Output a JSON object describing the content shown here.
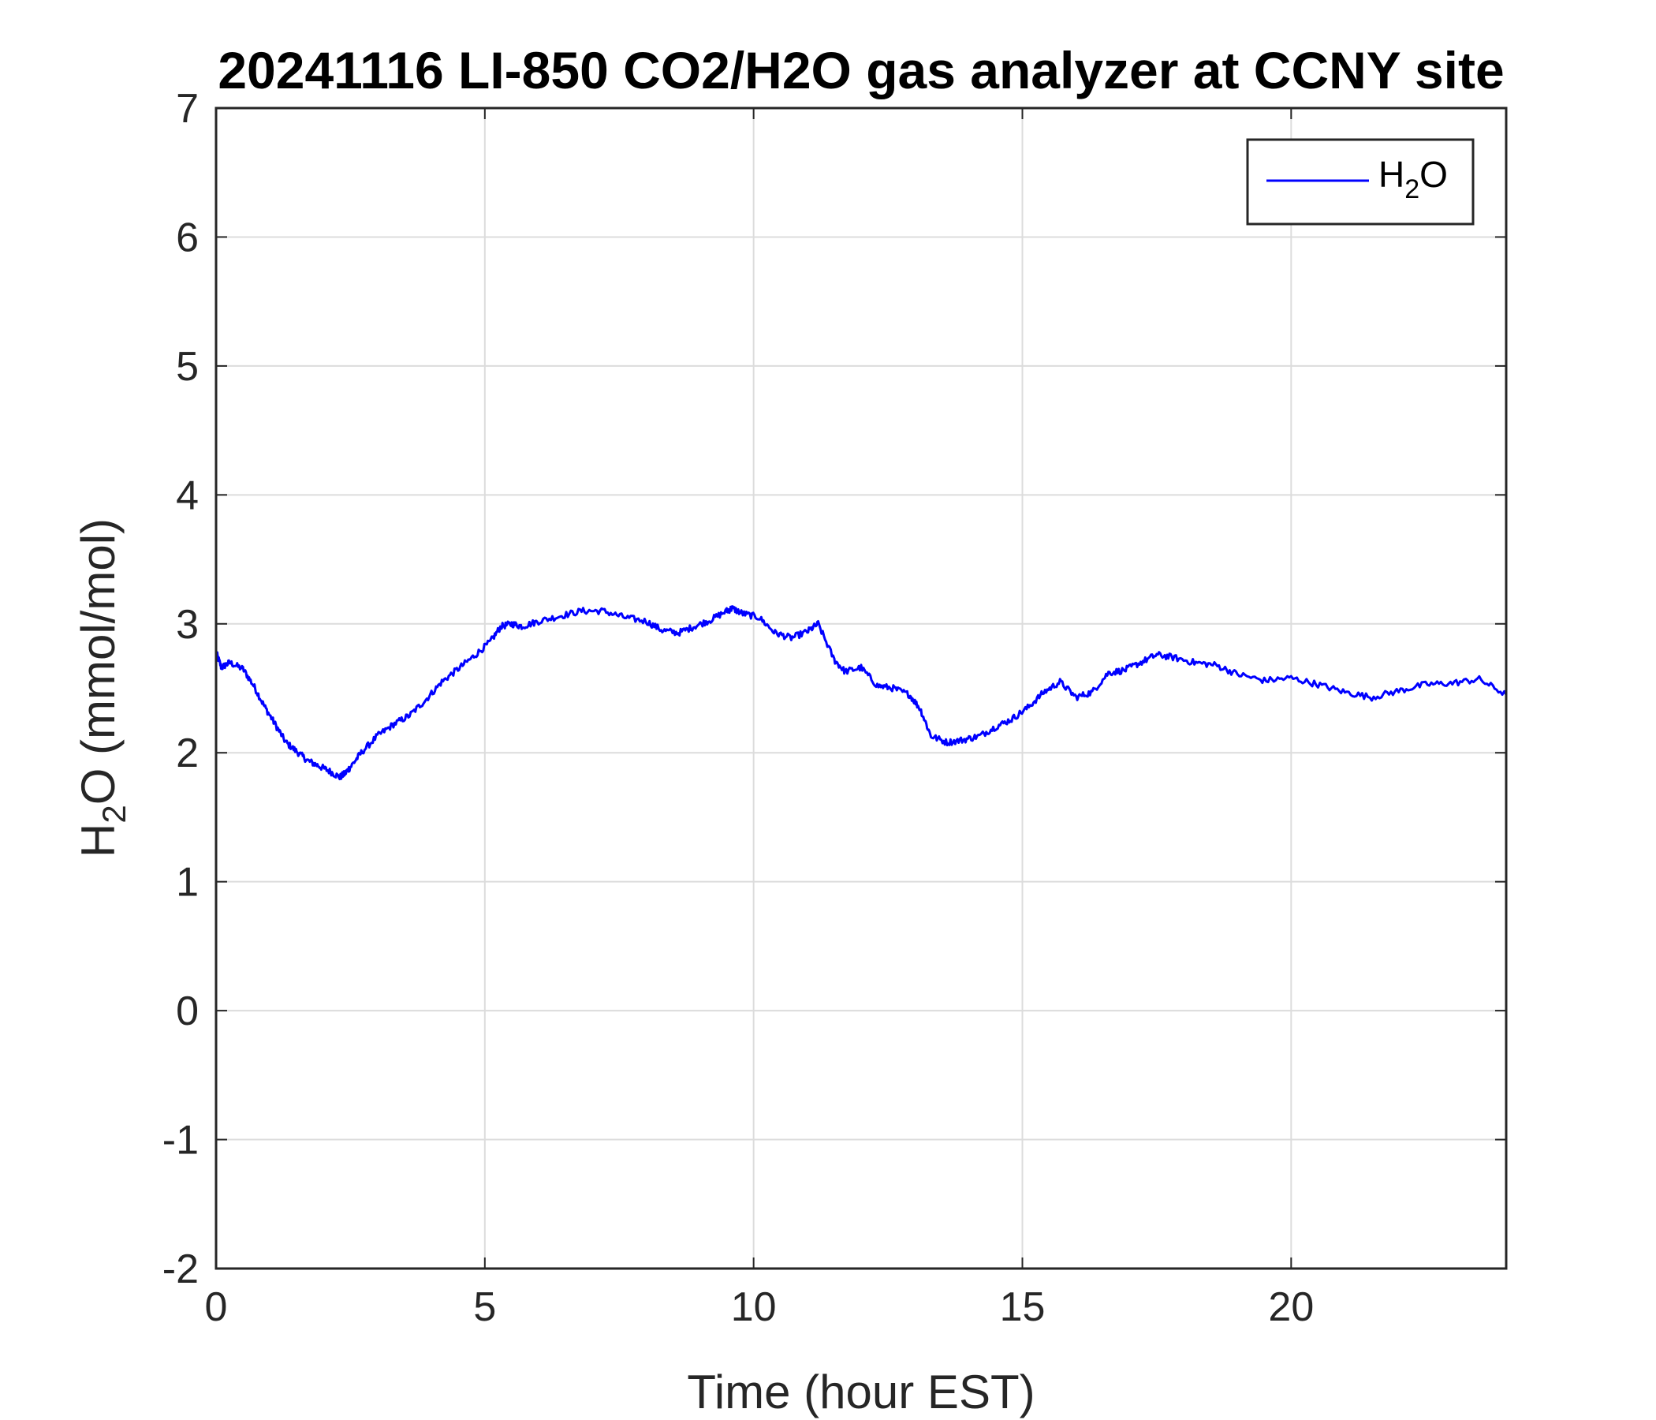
{
  "chart_data": {
    "type": "line",
    "title": "20241116 LI-850 CO2/H2O gas analyzer at CCNY site",
    "xlabel": "Time (hour EST)",
    "ylabel": {
      "pre": "H",
      "sub": "2",
      "post": "O (mmol/mol)"
    },
    "xlim": [
      0,
      24
    ],
    "ylim": [
      -2,
      7
    ],
    "xticks": [
      0,
      5,
      10,
      15,
      20
    ],
    "yticks": [
      -2,
      -1,
      0,
      1,
      2,
      3,
      4,
      5,
      6,
      7
    ],
    "grid": true,
    "legend": {
      "position": "top-right",
      "entries": [
        {
          "pre": "H",
          "sub": "2",
          "post": "O"
        }
      ]
    },
    "series": [
      {
        "name": "H2O",
        "color": "#0000ff",
        "x": [
          0,
          0.1,
          0.25,
          0.5,
          0.7,
          0.9,
          1.1,
          1.3,
          1.5,
          1.7,
          1.9,
          2.1,
          2.3,
          2.4,
          2.5,
          2.7,
          3.0,
          3.3,
          3.6,
          3.9,
          4.2,
          4.5,
          4.8,
          5.1,
          5.3,
          5.5,
          5.7,
          6.0,
          6.4,
          6.8,
          7.2,
          7.6,
          8.0,
          8.3,
          8.6,
          8.9,
          9.2,
          9.5,
          9.6,
          9.8,
          10.1,
          10.4,
          10.7,
          11.0,
          11.2,
          11.5,
          11.7,
          12.0,
          12.3,
          12.6,
          12.9,
          13.1,
          13.3,
          13.6,
          13.9,
          14.2,
          14.5,
          14.8,
          15.1,
          15.4,
          15.7,
          16.0,
          16.3,
          16.6,
          16.9,
          17.2,
          17.5,
          17.8,
          18.2,
          18.6,
          19.0,
          19.5,
          20.0,
          20.5,
          21.0,
          21.5,
          22.0,
          22.5,
          23.0,
          23.5,
          24.0
        ],
        "y": [
          2.78,
          2.66,
          2.7,
          2.65,
          2.52,
          2.36,
          2.22,
          2.08,
          2.01,
          1.94,
          1.9,
          1.86,
          1.81,
          1.84,
          1.89,
          2.0,
          2.13,
          2.22,
          2.29,
          2.41,
          2.55,
          2.65,
          2.75,
          2.86,
          2.98,
          3.0,
          2.98,
          3.02,
          3.06,
          3.1,
          3.1,
          3.05,
          3.02,
          2.95,
          2.93,
          2.98,
          3.03,
          3.1,
          3.12,
          3.08,
          3.05,
          2.93,
          2.89,
          2.94,
          3.0,
          2.72,
          2.63,
          2.66,
          2.52,
          2.5,
          2.45,
          2.34,
          2.13,
          2.08,
          2.1,
          2.13,
          2.2,
          2.26,
          2.35,
          2.47,
          2.55,
          2.43,
          2.47,
          2.62,
          2.64,
          2.7,
          2.76,
          2.74,
          2.7,
          2.68,
          2.61,
          2.56,
          2.58,
          2.53,
          2.47,
          2.43,
          2.48,
          2.53,
          2.54,
          2.57,
          2.45
        ]
      }
    ]
  }
}
